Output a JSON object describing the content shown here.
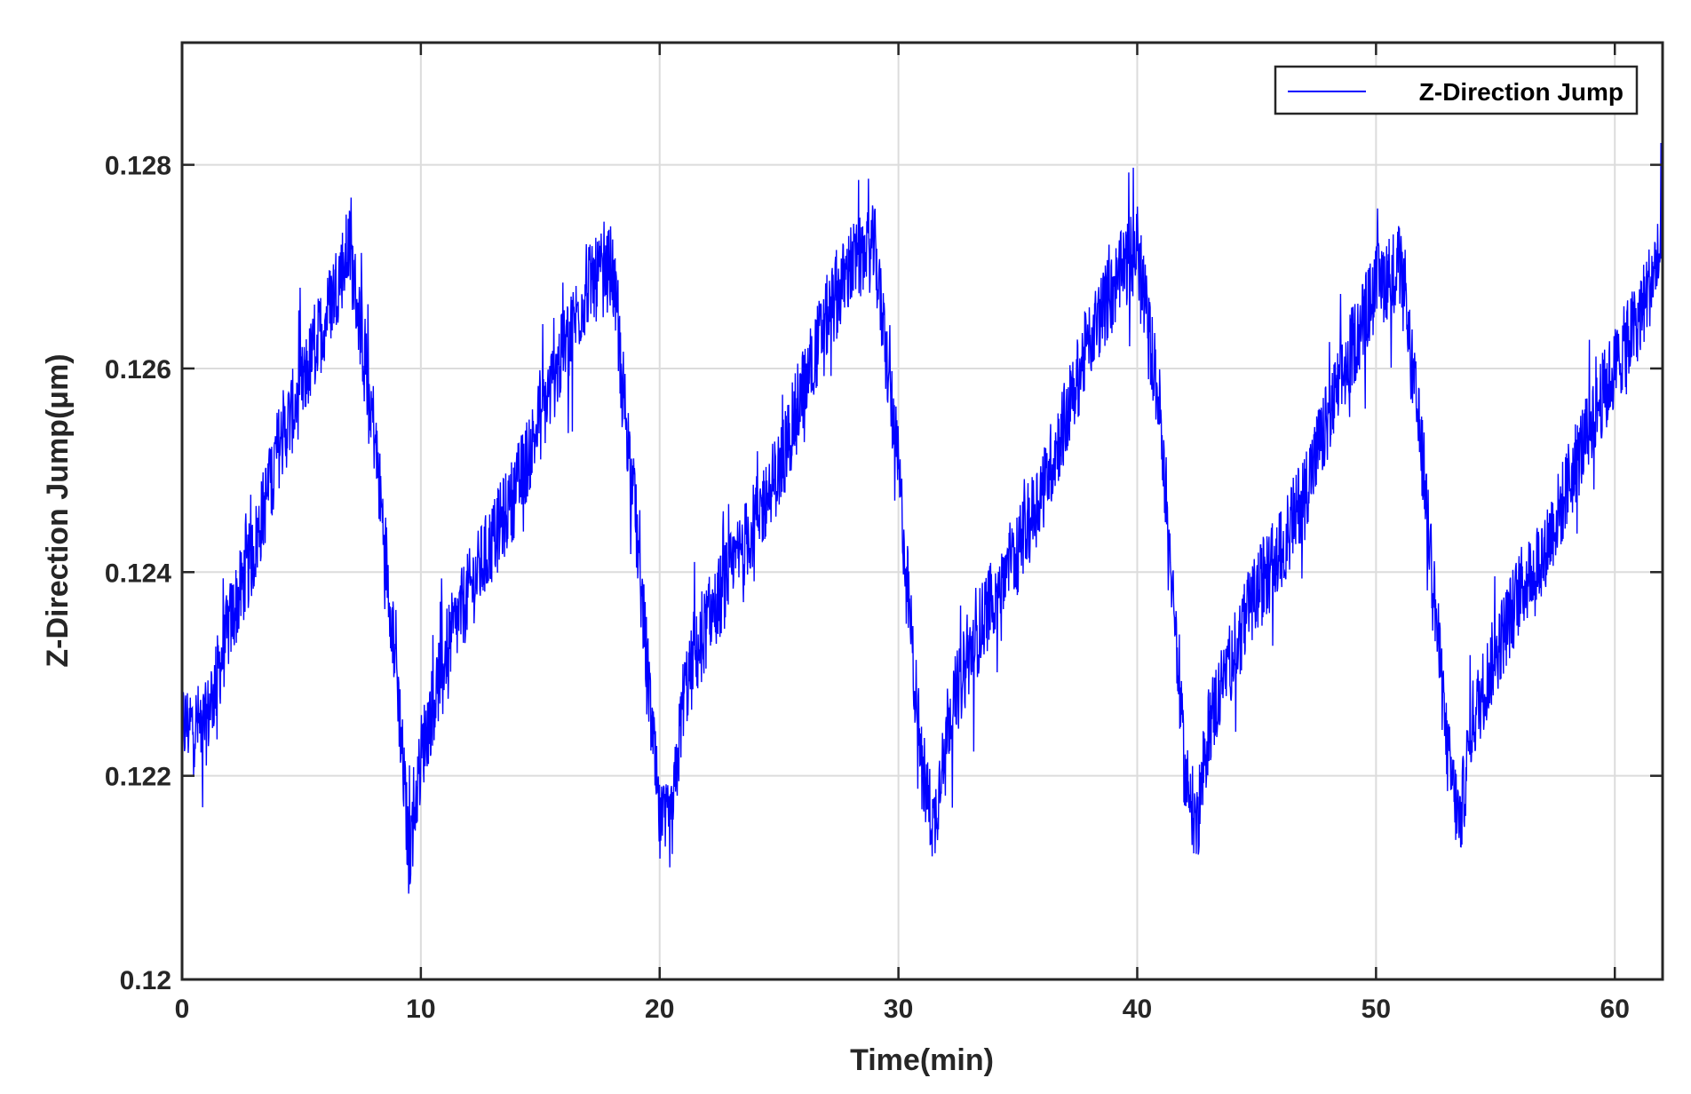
{
  "chart_data": {
    "type": "line",
    "title": "",
    "xlabel": "Time(min)",
    "ylabel": "Z-Direction Jump(μm)",
    "xlim": [
      0,
      62
    ],
    "ylim": [
      0.12,
      0.1292
    ],
    "xticks": [
      0,
      10,
      20,
      30,
      40,
      50,
      60
    ],
    "xtick_labels": [
      "0",
      "10",
      "20",
      "30",
      "40",
      "50",
      "60"
    ],
    "yticks": [
      0.12,
      0.122,
      0.124,
      0.126,
      0.128
    ],
    "ytick_labels": [
      "0.12",
      "0.122",
      "0.124",
      "0.126",
      "0.128"
    ],
    "grid": true,
    "legend": {
      "position": "top-right",
      "entries": [
        "Z-Direction Jump"
      ]
    },
    "series": [
      {
        "name": "Z-Direction Jump",
        "color": "#0000ff",
        "noise_amplitude": 0.0006,
        "x": [
          0,
          1,
          2,
          3,
          4,
          5,
          6,
          7,
          8,
          9,
          9.5,
          10,
          11,
          12,
          13,
          14,
          15,
          16,
          17,
          18,
          19,
          20,
          20.5,
          21,
          22,
          23,
          24,
          25,
          26,
          27,
          28,
          29,
          30,
          31,
          31.5,
          32,
          33,
          34,
          35,
          36,
          37,
          38,
          39,
          40,
          41,
          42,
          42.5,
          43,
          44,
          45,
          46,
          47,
          48,
          49,
          50,
          51,
          52,
          53,
          53.5,
          54,
          55,
          56,
          57,
          58,
          59,
          60,
          61,
          62
        ],
        "values": [
          0.1225,
          0.1225,
          0.1235,
          0.1242,
          0.1252,
          0.1258,
          0.1265,
          0.1272,
          0.1255,
          0.123,
          0.1212,
          0.1222,
          0.1232,
          0.1238,
          0.1243,
          0.1248,
          0.1255,
          0.1262,
          0.1268,
          0.127,
          0.1245,
          0.1215,
          0.1215,
          0.1228,
          0.1235,
          0.124,
          0.1245,
          0.125,
          0.1258,
          0.1265,
          0.127,
          0.1272,
          0.125,
          0.122,
          0.1215,
          0.1225,
          0.1232,
          0.1238,
          0.1242,
          0.1248,
          0.1255,
          0.1263,
          0.1268,
          0.1272,
          0.1255,
          0.122,
          0.1215,
          0.1225,
          0.1232,
          0.1238,
          0.1242,
          0.1248,
          0.1255,
          0.1262,
          0.1268,
          0.127,
          0.125,
          0.1222,
          0.1215,
          0.1225,
          0.1232,
          0.1238,
          0.1242,
          0.1248,
          0.1255,
          0.126,
          0.1265,
          0.1272
        ]
      }
    ]
  }
}
